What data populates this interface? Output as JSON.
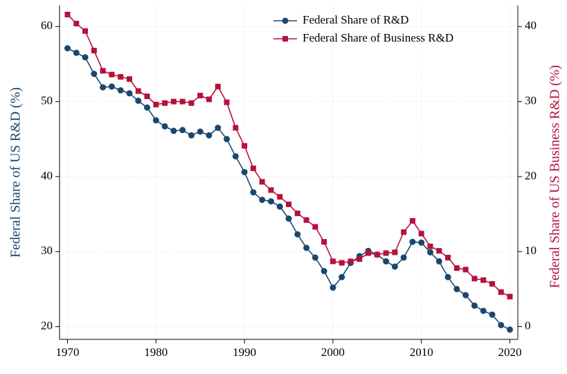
{
  "chart_data": {
    "type": "line",
    "x": [
      1970,
      1971,
      1972,
      1973,
      1974,
      1975,
      1976,
      1977,
      1978,
      1979,
      1980,
      1981,
      1982,
      1983,
      1984,
      1985,
      1986,
      1987,
      1988,
      1989,
      1990,
      1991,
      1992,
      1993,
      1994,
      1995,
      1996,
      1997,
      1998,
      1999,
      2000,
      2001,
      2002,
      2003,
      2004,
      2005,
      2006,
      2007,
      2008,
      2009,
      2010,
      2011,
      2012,
      2013,
      2014,
      2015,
      2016,
      2017,
      2018,
      2019,
      2020
    ],
    "series": [
      {
        "name": "Federal Share of R&D",
        "color": "#1a476f",
        "marker": "circle",
        "values": [
          57.1,
          56.5,
          55.9,
          53.7,
          51.9,
          52.0,
          51.5,
          51.1,
          50.1,
          49.2,
          47.5,
          46.7,
          46.1,
          46.2,
          45.5,
          46.0,
          45.5,
          46.5,
          45.0,
          42.7,
          40.6,
          37.9,
          36.9,
          36.7,
          36.0,
          34.4,
          32.3,
          30.5,
          29.2,
          27.4,
          25.2,
          26.6,
          28.5,
          29.4,
          30.1,
          29.6,
          28.7,
          28.0,
          29.2,
          31.3,
          31.2,
          29.9,
          28.7,
          26.6,
          25.0,
          24.2,
          22.8,
          22.1,
          21.6,
          20.2,
          19.6
        ]
      },
      {
        "name": "Federal Share of Business R&D",
        "color": "#b5123b",
        "marker": "square",
        "axis": "y2",
        "values": [
          41.6,
          40.4,
          39.4,
          36.8,
          34.1,
          33.6,
          33.3,
          33.0,
          31.4,
          30.7,
          29.6,
          29.8,
          30.0,
          30.0,
          29.8,
          30.8,
          30.3,
          32.0,
          29.9,
          26.5,
          24.1,
          21.1,
          19.3,
          18.2,
          17.3,
          16.3,
          15.1,
          14.2,
          13.3,
          11.3,
          8.7,
          8.5,
          8.7,
          9.0,
          9.8,
          9.6,
          9.8,
          9.9,
          12.6,
          14.1,
          12.4,
          10.7,
          10.1,
          9.2,
          7.8,
          7.6,
          6.4,
          6.2,
          5.7,
          4.6,
          4.0
        ]
      }
    ],
    "xlim": [
      1969.1,
      2020.9
    ],
    "xticks": [
      1970,
      1980,
      1990,
      2000,
      2010,
      2020
    ],
    "ylim": [
      18.3,
      62.8
    ],
    "yticks": [
      20,
      30,
      40,
      50,
      60
    ],
    "y2lim": [
      -1.7,
      42.8
    ],
    "y2ticks": [
      0,
      10,
      20,
      30,
      40
    ],
    "ylabel": "Federal Share of US R&D (%)",
    "y2label": "Federal Share of US Business R&D (%)",
    "grid": true,
    "legend": "top-right"
  }
}
